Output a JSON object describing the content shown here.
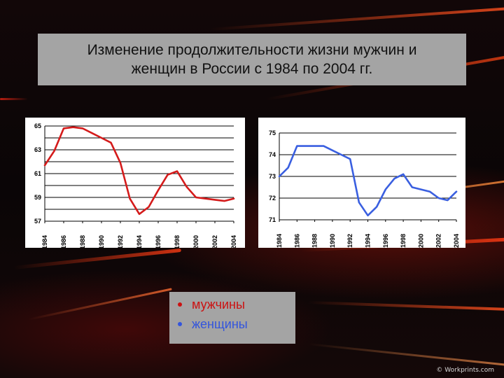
{
  "title": "Изменение продолжительности жизни мужчин и\nженщин в России с 1984 по 2004 гг.",
  "legend": {
    "items": [
      {
        "label": "мужчины",
        "color": "#cc1111"
      },
      {
        "label": "женщины",
        "color": "#3355dd"
      }
    ]
  },
  "watermark": "© Workprints.com",
  "chart_data": [
    {
      "type": "line",
      "title": "",
      "xlabel": "",
      "ylabel": "",
      "x_ticks": [
        "1984",
        "1986",
        "1988",
        "1990",
        "1992",
        "1994",
        "1996",
        "1998",
        "2000",
        "2002",
        "2004"
      ],
      "y_ticks": [
        57,
        59,
        61,
        63,
        65
      ],
      "ylim": [
        57,
        65
      ],
      "xlim": [
        1984,
        2004
      ],
      "grid": true,
      "series": [
        {
          "color": "#d41b1b",
          "x": [
            1984,
            1985,
            1986,
            1987,
            1988,
            1989,
            1990,
            1991,
            1992,
            1993,
            1994,
            1995,
            1996,
            1997,
            1998,
            1999,
            2000,
            2001,
            2002,
            2003,
            2004
          ],
          "values": [
            61.7,
            62.9,
            64.8,
            64.9,
            64.8,
            64.4,
            64.0,
            63.6,
            61.9,
            58.9,
            57.6,
            58.2,
            59.6,
            60.9,
            61.2,
            59.9,
            59.0,
            58.9,
            58.8,
            58.7,
            58.9
          ]
        }
      ]
    },
    {
      "type": "line",
      "title": "",
      "xlabel": "",
      "ylabel": "",
      "x_ticks": [
        "1984",
        "1986",
        "1988",
        "1990",
        "1992",
        "1994",
        "1996",
        "1998",
        "2000",
        "2002",
        "2004"
      ],
      "y_ticks": [
        71,
        72,
        73,
        74,
        75
      ],
      "ylim": [
        71,
        75
      ],
      "xlim": [
        1984,
        2004
      ],
      "grid": true,
      "series": [
        {
          "color": "#3a5fe0",
          "x": [
            1984,
            1985,
            1986,
            1987,
            1988,
            1989,
            1990,
            1991,
            1992,
            1993,
            1994,
            1995,
            1996,
            1997,
            1998,
            1999,
            2000,
            2001,
            2002,
            2003,
            2004
          ],
          "values": [
            73.0,
            73.4,
            74.4,
            74.4,
            74.4,
            74.4,
            74.2,
            74.0,
            73.8,
            71.8,
            71.2,
            71.6,
            72.4,
            72.9,
            73.1,
            72.5,
            72.4,
            72.3,
            72.0,
            71.9,
            72.3
          ]
        }
      ]
    }
  ]
}
